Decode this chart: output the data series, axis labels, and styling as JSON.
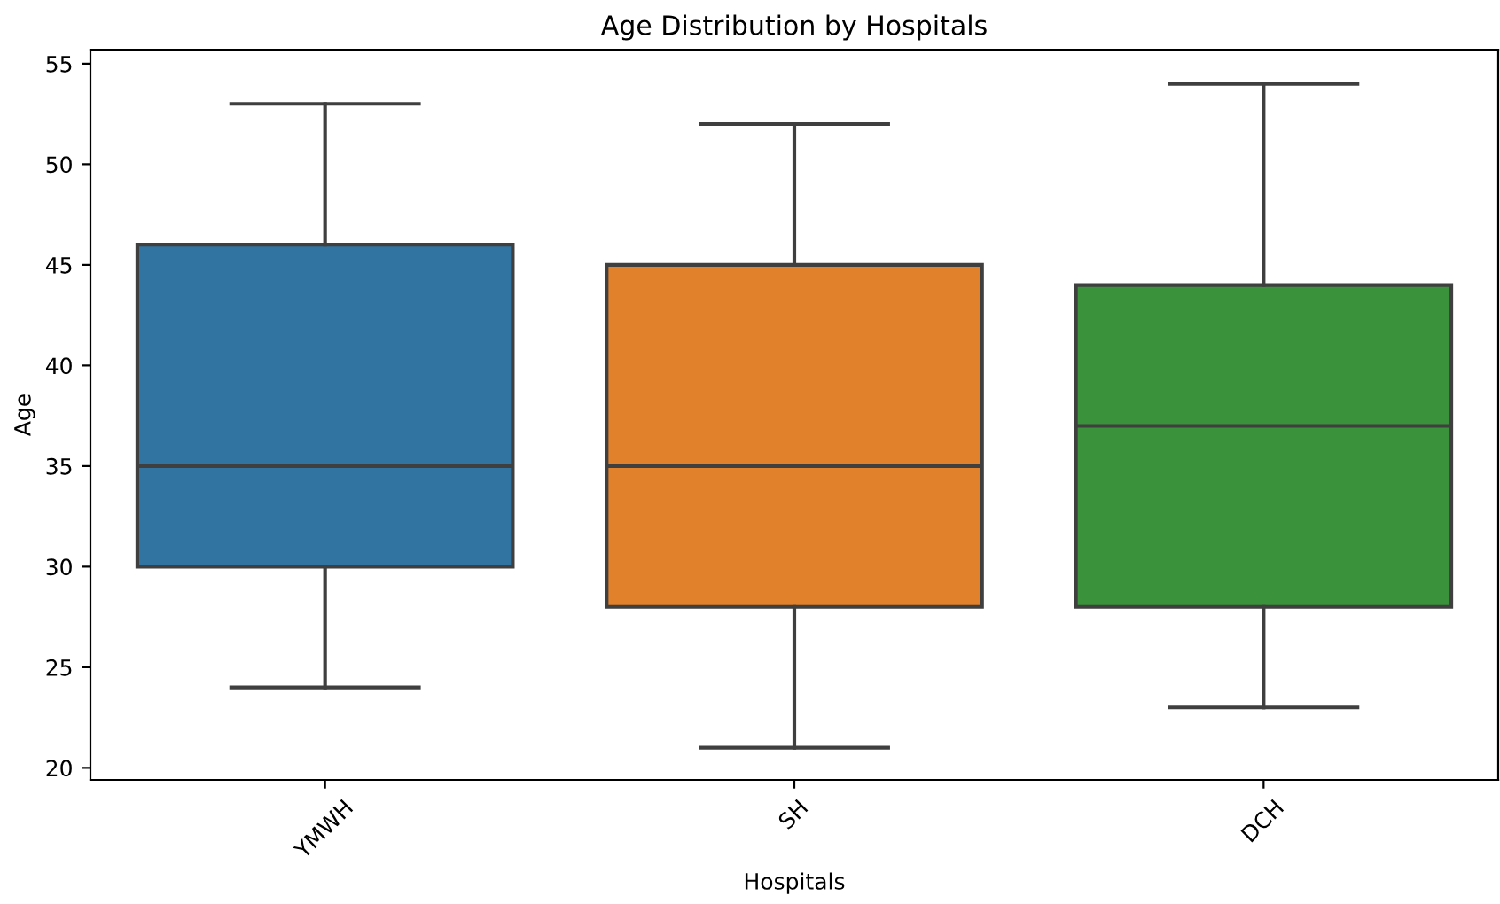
{
  "chart_data": {
    "type": "box",
    "title": "Age Distribution by Hospitals",
    "xlabel": "Hospitals",
    "ylabel": "Age",
    "categories": [
      "YMWH",
      "SH",
      "DCH"
    ],
    "colors": [
      "#3274a1",
      "#e1812c",
      "#3a923a"
    ],
    "boxes": [
      {
        "low": 24,
        "q1": 30,
        "median": 35,
        "q3": 46,
        "high": 53
      },
      {
        "low": 21,
        "q1": 28,
        "median": 35,
        "q3": 45,
        "high": 52
      },
      {
        "low": 23,
        "q1": 28,
        "median": 37,
        "q3": 44,
        "high": 54
      }
    ],
    "ylim": [
      19.4,
      55.7
    ],
    "yticks": [
      20,
      25,
      30,
      35,
      40,
      45,
      50,
      55
    ],
    "grid": false
  }
}
